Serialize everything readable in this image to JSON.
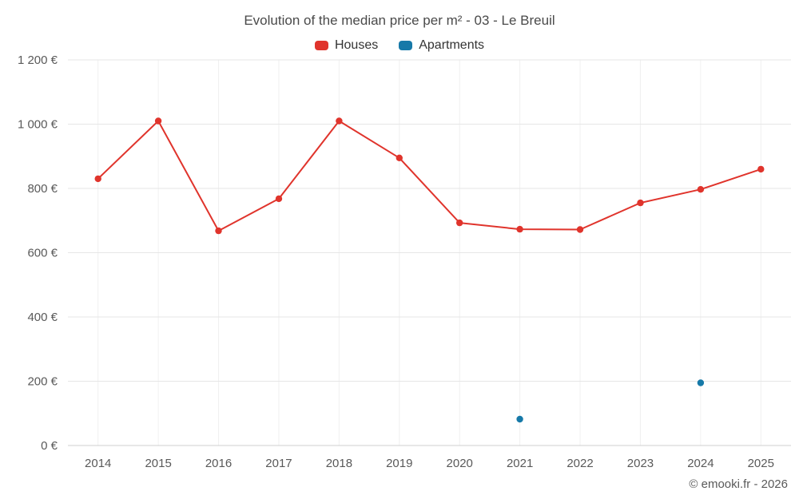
{
  "chart": {
    "title": "Evolution of the median price per m² - 03 - Le Breuil",
    "footer": "© emooki.fr - 2026"
  },
  "chart_data": {
    "type": "line",
    "title": "Evolution of the median price per m² - 03 - Le Breuil",
    "x": [
      2014,
      2015,
      2016,
      2017,
      2018,
      2019,
      2020,
      2021,
      2022,
      2023,
      2024,
      2025
    ],
    "series": [
      {
        "name": "Houses",
        "color": "#e0342c",
        "values": [
          830,
          1010,
          668,
          768,
          1010,
          895,
          693,
          673,
          672,
          755,
          797,
          860
        ]
      },
      {
        "name": "Apartments",
        "color": "#1679a8",
        "values": [
          null,
          null,
          null,
          null,
          null,
          null,
          null,
          82,
          null,
          null,
          195,
          null
        ]
      }
    ],
    "xlabel": "",
    "ylabel": "",
    "ylim": [
      0,
      1200
    ],
    "ytick_step": 200,
    "ytick_labels": [
      "0 €",
      "200 €",
      "400 €",
      "600 €",
      "800 €",
      "1 000 €",
      "1 200 €"
    ],
    "grid": true,
    "legend_position": "top",
    "marker": "circle"
  }
}
